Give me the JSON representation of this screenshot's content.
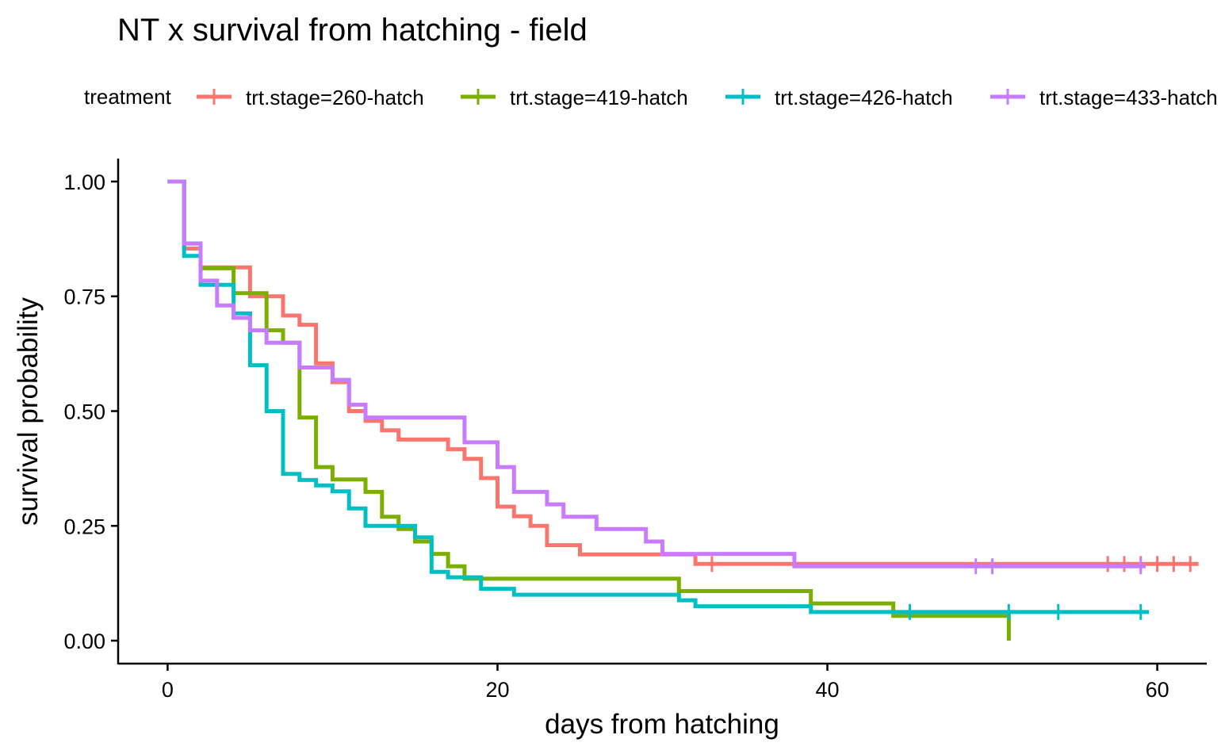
{
  "chart_data": {
    "type": "line",
    "title": "NT x survival from hatching - field",
    "xlabel": "days from hatching",
    "ylabel": "survival probability",
    "xlim": [
      -3,
      63
    ],
    "ylim": [
      -0.05,
      1.05
    ],
    "x_ticks": [
      0,
      20,
      40,
      60
    ],
    "x_tick_labels": [
      "0",
      "20",
      "40",
      "60"
    ],
    "y_ticks": [
      0,
      0.25,
      0.5,
      0.75,
      1
    ],
    "y_tick_labels": [
      "0.00",
      "0.25",
      "0.50",
      "0.75",
      "1.00"
    ],
    "grid": false,
    "legend": {
      "title": "treatment",
      "position": "top",
      "entries": [
        "trt.stage=260-hatch",
        "trt.stage=419-hatch",
        "trt.stage=426-hatch",
        "trt.stage=433-hatch"
      ]
    },
    "series": [
      {
        "name": "trt.stage=260-hatch",
        "color": "#F8766D",
        "steps": [
          [
            0,
            1.0
          ],
          [
            1,
            0.854
          ],
          [
            2,
            0.813
          ],
          [
            5,
            0.75
          ],
          [
            7,
            0.708
          ],
          [
            8,
            0.688
          ],
          [
            9,
            0.604
          ],
          [
            10,
            0.563
          ],
          [
            11,
            0.5
          ],
          [
            12,
            0.479
          ],
          [
            13,
            0.458
          ],
          [
            14,
            0.438
          ],
          [
            17,
            0.417
          ],
          [
            18,
            0.396
          ],
          [
            19,
            0.354
          ],
          [
            20,
            0.292
          ],
          [
            21,
            0.271
          ],
          [
            22,
            0.25
          ],
          [
            23,
            0.208
          ],
          [
            25,
            0.188
          ],
          [
            32,
            0.167
          ]
        ],
        "end": 62.5,
        "censored": [
          33,
          57,
          58,
          59,
          60,
          61,
          62
        ]
      },
      {
        "name": "trt.stage=419-hatch",
        "color": "#7CAE00",
        "steps": [
          [
            0,
            1.0
          ],
          [
            1,
            0.865
          ],
          [
            2,
            0.811
          ],
          [
            4,
            0.757
          ],
          [
            6,
            0.676
          ],
          [
            7,
            0.649
          ],
          [
            8,
            0.486
          ],
          [
            9,
            0.378
          ],
          [
            10,
            0.351
          ],
          [
            12,
            0.324
          ],
          [
            13,
            0.27
          ],
          [
            14,
            0.243
          ],
          [
            15,
            0.216
          ],
          [
            16,
            0.189
          ],
          [
            17,
            0.162
          ],
          [
            18,
            0.135
          ],
          [
            31,
            0.108
          ],
          [
            39,
            0.081
          ],
          [
            44,
            0.054
          ],
          [
            51,
            0.0
          ]
        ],
        "end": 51,
        "censored": []
      },
      {
        "name": "trt.stage=426-hatch",
        "color": "#00BFC4",
        "steps": [
          [
            0,
            1.0
          ],
          [
            1,
            0.838
          ],
          [
            2,
            0.775
          ],
          [
            4,
            0.713
          ],
          [
            5,
            0.6
          ],
          [
            6,
            0.5
          ],
          [
            7,
            0.363
          ],
          [
            8,
            0.35
          ],
          [
            9,
            0.338
          ],
          [
            10,
            0.325
          ],
          [
            11,
            0.288
          ],
          [
            12,
            0.25
          ],
          [
            15,
            0.225
          ],
          [
            16,
            0.15
          ],
          [
            17,
            0.138
          ],
          [
            19,
            0.113
          ],
          [
            21,
            0.1
          ],
          [
            31,
            0.088
          ],
          [
            32,
            0.075
          ],
          [
            39,
            0.0625
          ]
        ],
        "end": 59.5,
        "censored": [
          45,
          51,
          54,
          59
        ]
      },
      {
        "name": "trt.stage=433-hatch",
        "color": "#C77CFF",
        "steps": [
          [
            0,
            1.0
          ],
          [
            1,
            0.865
          ],
          [
            2,
            0.784
          ],
          [
            3,
            0.73
          ],
          [
            4,
            0.703
          ],
          [
            5,
            0.676
          ],
          [
            6,
            0.649
          ],
          [
            8,
            0.595
          ],
          [
            10,
            0.568
          ],
          [
            11,
            0.514
          ],
          [
            12,
            0.486
          ],
          [
            18,
            0.432
          ],
          [
            20,
            0.378
          ],
          [
            21,
            0.324
          ],
          [
            23,
            0.297
          ],
          [
            24,
            0.27
          ],
          [
            26,
            0.243
          ],
          [
            29,
            0.216
          ],
          [
            30,
            0.189
          ],
          [
            38,
            0.162
          ]
        ],
        "end": 59.3,
        "censored": [
          49,
          50,
          59
        ]
      }
    ]
  }
}
